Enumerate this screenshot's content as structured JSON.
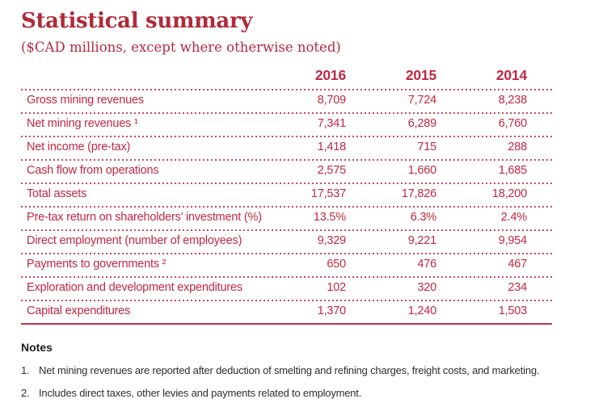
{
  "page": {
    "title": "Statistical summary",
    "subtitle": "($CAD millions, except where otherwise noted)"
  },
  "table": {
    "columns": [
      "2016",
      "2015",
      "2014"
    ],
    "rows": [
      {
        "label": "Gross mining revenues",
        "values": [
          "8,709",
          "7,724",
          "8,238"
        ]
      },
      {
        "label": "Net mining revenues ¹",
        "values": [
          "7,341",
          "6,289",
          "6,760"
        ]
      },
      {
        "label": "Net income (pre-tax)",
        "values": [
          "1,418",
          "715",
          "288"
        ]
      },
      {
        "label": "Cash flow from operations",
        "values": [
          "2,575",
          "1,660",
          "1,685"
        ]
      },
      {
        "label": "Total assets",
        "values": [
          "17,537",
          "17,826",
          "18,200"
        ]
      },
      {
        "label": "Pre-tax return on shareholders’ investment (%)",
        "values": [
          "13.5%",
          "6.3%",
          "2.4%"
        ]
      },
      {
        "label": "Direct employment (number of employees)",
        "values": [
          "9,329",
          "9,221",
          "9,954"
        ]
      },
      {
        "label": "Payments to governments ²",
        "values": [
          "650",
          "476",
          "467"
        ]
      },
      {
        "label": "Exploration and development expenditures",
        "values": [
          "102",
          "320",
          "234"
        ]
      },
      {
        "label": "Capital expenditures",
        "values": [
          "1,370",
          "1,240",
          "1,503"
        ]
      }
    ]
  },
  "notes": {
    "title": "Notes",
    "items": [
      {
        "num": "1.",
        "text": "Net mining revenues are reported after deduction of smelting and refining charges, freight costs, and marketing."
      },
      {
        "num": "2.",
        "text": "Includes direct taxes, other levies and payments related to employment."
      }
    ]
  },
  "colors": {
    "title_red": "#b02a38",
    "table_red": "#c22742",
    "dotted_line_red": "#c84a62",
    "solid_line_red": "#b8314e",
    "notes_text": "#2e2e2e"
  }
}
